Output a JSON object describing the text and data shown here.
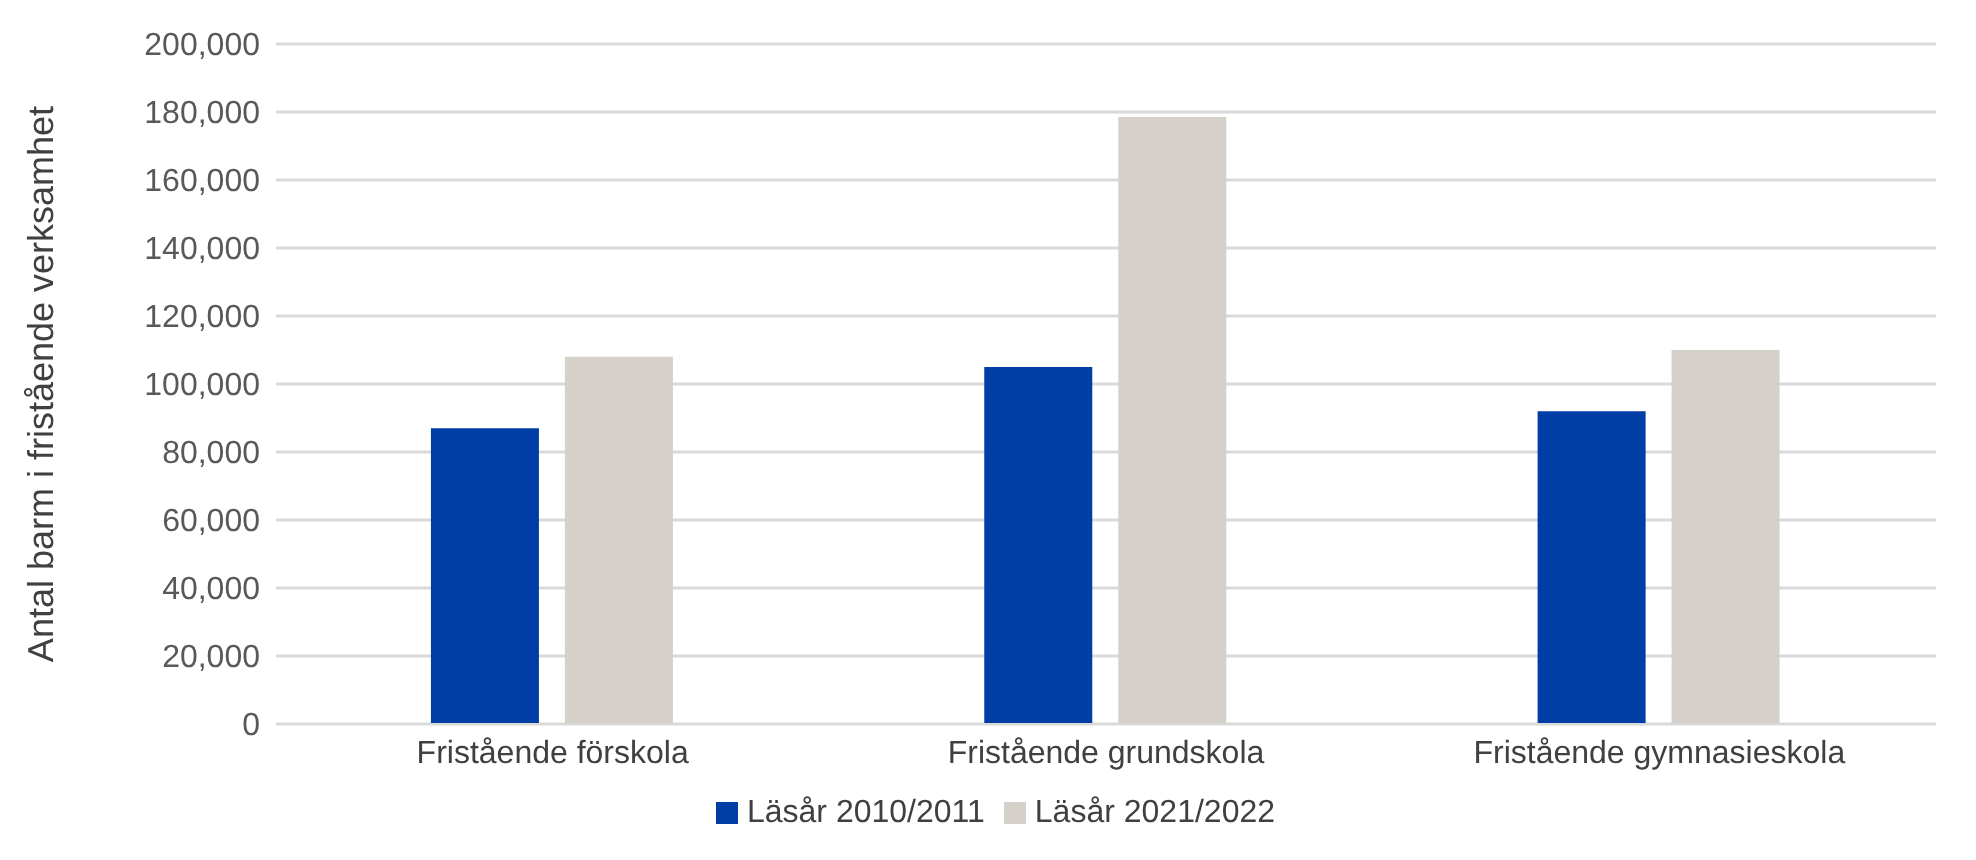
{
  "chart_data": {
    "type": "bar",
    "ylabel": "Antal barm i fristående verksamhet",
    "categories": [
      "Fristående förskola",
      "Fristående grundskola",
      "Fristående gymnasieskola"
    ],
    "series": [
      {
        "name": "Läsår 2010/2011",
        "color": "#003da5",
        "values": [
          87000,
          105000,
          92000
        ]
      },
      {
        "name": "Läsår 2021/2022",
        "color": "#d5d0ca",
        "values": [
          108000,
          178500,
          110000
        ]
      }
    ],
    "ylim": [
      0,
      200000
    ],
    "yticks": [
      {
        "value": 0,
        "label": "0"
      },
      {
        "value": 20000,
        "label": "20,000"
      },
      {
        "value": 40000,
        "label": "40,000"
      },
      {
        "value": 60000,
        "label": "60,000"
      },
      {
        "value": 80000,
        "label": "80,000"
      },
      {
        "value": 100000,
        "label": "100,000"
      },
      {
        "value": 120000,
        "label": "120,000"
      },
      {
        "value": 140000,
        "label": "140,000"
      },
      {
        "value": 160000,
        "label": "160,000"
      },
      {
        "value": 180000,
        "label": "180,000"
      },
      {
        "value": 200000,
        "label": "200,000"
      }
    ],
    "grid": "y",
    "legend": "bottom"
  }
}
